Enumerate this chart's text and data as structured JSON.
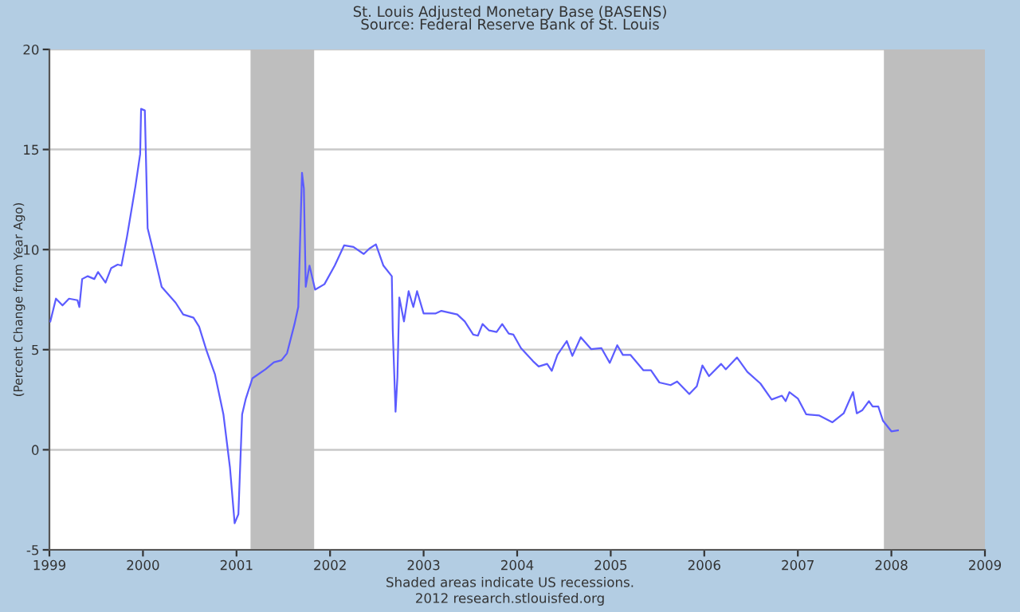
{
  "chart_data": {
    "type": "line",
    "title": "St. Louis Adjusted Monetary Base (BASENS)",
    "subtitle": "Source: Federal Reserve Bank of St. Louis",
    "ylabel": "(Percent Change from Year Ago)",
    "annotations": [
      "Shaded areas indicate US recessions.",
      "2012 research.stlouisfed.org"
    ],
    "xlim": [
      1999,
      2009
    ],
    "xticks": [
      1999,
      2000,
      2001,
      2002,
      2003,
      2004,
      2005,
      2006,
      2007,
      2008,
      2009
    ],
    "ylim": [
      -5,
      20
    ],
    "yticks": [
      -5,
      0,
      5,
      10,
      15,
      20
    ],
    "grid": "y",
    "bands": [
      {
        "axis": "x",
        "from": 2001.15,
        "to": 2001.83,
        "color": "#bebebe"
      },
      {
        "axis": "x",
        "from": 2007.92,
        "to": 2009,
        "color": "#bebebe"
      }
    ],
    "series": [
      {
        "color": "#5c5cff",
        "x": [
          1999.01,
          1999.07,
          1999.14,
          1999.21,
          1999.3,
          1999.32,
          1999.35,
          1999.41,
          1999.48,
          1999.52,
          1999.6,
          1999.66,
          1999.73,
          1999.77,
          1999.83,
          1999.92,
          1999.97,
          1999.98,
          2000.02,
          2000.05,
          2000.12,
          2000.2,
          2000.35,
          2000.43,
          2000.54,
          2000.6,
          2000.68,
          2000.77,
          2000.86,
          2000.93,
          2000.98,
          2001.02,
          2001.06,
          2001.1,
          2001.17,
          2001.31,
          2001.4,
          2001.48,
          2001.54,
          2001.62,
          2001.66,
          2001.7,
          2001.72,
          2001.74,
          2001.78,
          2001.84,
          2001.94,
          2002.05,
          2002.15,
          2002.25,
          2002.36,
          2002.42,
          2002.49,
          2002.57,
          2002.66,
          2002.67,
          2002.7,
          2002.72,
          2002.74,
          2002.79,
          2002.84,
          2002.89,
          2002.93,
          2003.0,
          2003.13,
          2003.19,
          2003.36,
          2003.44,
          2003.53,
          2003.58,
          2003.63,
          2003.7,
          2003.78,
          2003.84,
          2003.91,
          2003.96,
          2004.04,
          2004.17,
          2004.23,
          2004.32,
          2004.37,
          2004.43,
          2004.53,
          2004.59,
          2004.68,
          2004.79,
          2004.9,
          2004.99,
          2005.07,
          2005.13,
          2005.21,
          2005.35,
          2005.43,
          2005.52,
          2005.64,
          2005.71,
          2005.84,
          2005.92,
          2005.98,
          2006.05,
          2006.18,
          2006.23,
          2006.35,
          2006.46,
          2006.6,
          2006.72,
          2006.83,
          2006.87,
          2006.91,
          2007.0,
          2007.09,
          2007.23,
          2007.37,
          2007.49,
          2007.59,
          2007.63,
          2007.69,
          2007.76,
          2007.8,
          2007.86,
          2007.91,
          2008.0,
          2008.07
        ],
        "values": [
          6.41,
          7.55,
          7.21,
          7.55,
          7.47,
          7.13,
          8.53,
          8.67,
          8.53,
          8.88,
          8.35,
          9.07,
          9.25,
          9.2,
          10.66,
          13.18,
          14.77,
          17.03,
          16.95,
          11.06,
          9.73,
          8.14,
          7.34,
          6.76,
          6.6,
          6.15,
          4.95,
          3.76,
          1.77,
          -0.89,
          -3.67,
          -3.22,
          1.77,
          2.56,
          3.57,
          4.02,
          4.37,
          4.47,
          4.82,
          6.28,
          7.13,
          13.84,
          13.05,
          8.14,
          9.2,
          8.0,
          8.27,
          9.2,
          10.21,
          10.13,
          9.78,
          10.05,
          10.26,
          9.2,
          8.67,
          6.01,
          1.9,
          3.63,
          7.61,
          6.41,
          7.92,
          7.13,
          7.92,
          6.81,
          6.81,
          6.94,
          6.76,
          6.41,
          5.75,
          5.7,
          6.28,
          5.96,
          5.88,
          6.28,
          5.8,
          5.75,
          5.08,
          4.42,
          4.16,
          4.29,
          3.94,
          4.74,
          5.43,
          4.69,
          5.62,
          5.03,
          5.08,
          4.34,
          5.22,
          4.74,
          4.74,
          3.97,
          3.97,
          3.36,
          3.23,
          3.41,
          2.78,
          3.17,
          4.21,
          3.68,
          4.29,
          4.02,
          4.61,
          3.89,
          3.31,
          2.51,
          2.7,
          2.43,
          2.88,
          2.56,
          1.77,
          1.71,
          1.37,
          1.82,
          2.88,
          1.82,
          1.98,
          2.43,
          2.16,
          2.16,
          1.45,
          0.92,
          0.97
        ]
      }
    ]
  }
}
